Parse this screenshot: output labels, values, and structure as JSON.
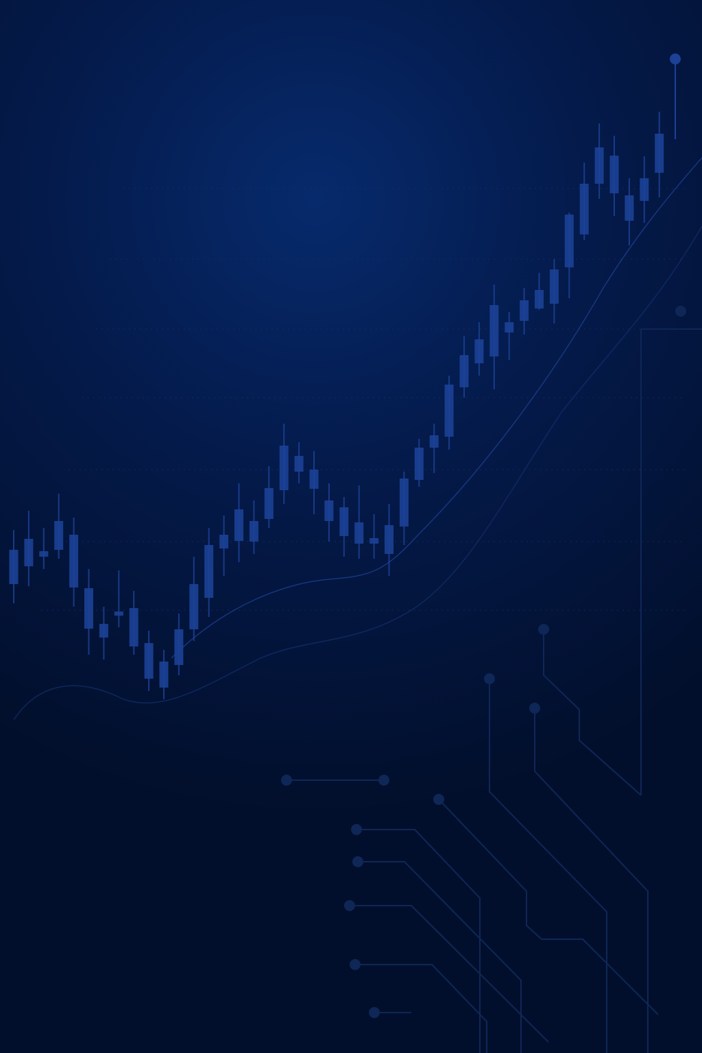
{
  "chart_data": {
    "type": "candlestick",
    "color": "#1c4196",
    "ylim": [
      0,
      1536
    ],
    "high": [
      763,
      791,
      766,
      816,
      781,
      706,
      651,
      704,
      674,
      616,
      588,
      641,
      724,
      766,
      784,
      831,
      806,
      856,
      918,
      891,
      878,
      831,
      811,
      828,
      786,
      801,
      848,
      896,
      918,
      988,
      1046,
      1066,
      1121,
      1081,
      1116,
      1138,
      1158,
      1226,
      1299,
      1356,
      1338,
      1276,
      1308,
      1373
    ],
    "low": [
      656,
      681,
      706,
      721,
      651,
      581,
      574,
      621,
      581,
      528,
      516,
      551,
      601,
      636,
      696,
      716,
      728,
      766,
      801,
      831,
      786,
      746,
      724,
      721,
      721,
      696,
      741,
      826,
      846,
      880,
      956,
      988,
      968,
      1011,
      1048,
      1084,
      1064,
      1101,
      1186,
      1246,
      1221,
      1178,
      1211,
      1248
    ],
    "open": [
      684,
      710,
      724,
      734,
      679,
      619,
      606,
      638,
      593,
      546,
      533,
      566,
      618,
      664,
      736,
      747,
      746,
      779,
      821,
      848,
      823,
      776,
      754,
      743,
      743,
      728,
      768,
      836,
      883,
      899,
      971,
      1006,
      1016,
      1051,
      1068,
      1086,
      1093,
      1146,
      1194,
      1268,
      1254,
      1214,
      1243,
      1284
    ],
    "close": [
      734,
      750,
      732,
      776,
      756,
      678,
      626,
      644,
      649,
      598,
      571,
      618,
      684,
      741,
      756,
      793,
      776,
      824,
      886,
      871,
      851,
      806,
      796,
      774,
      751,
      770,
      838,
      883,
      901,
      975,
      1018,
      1041,
      1091,
      1066,
      1098,
      1113,
      1143,
      1223,
      1268,
      1321,
      1309,
      1251,
      1276,
      1341
    ]
  }
}
